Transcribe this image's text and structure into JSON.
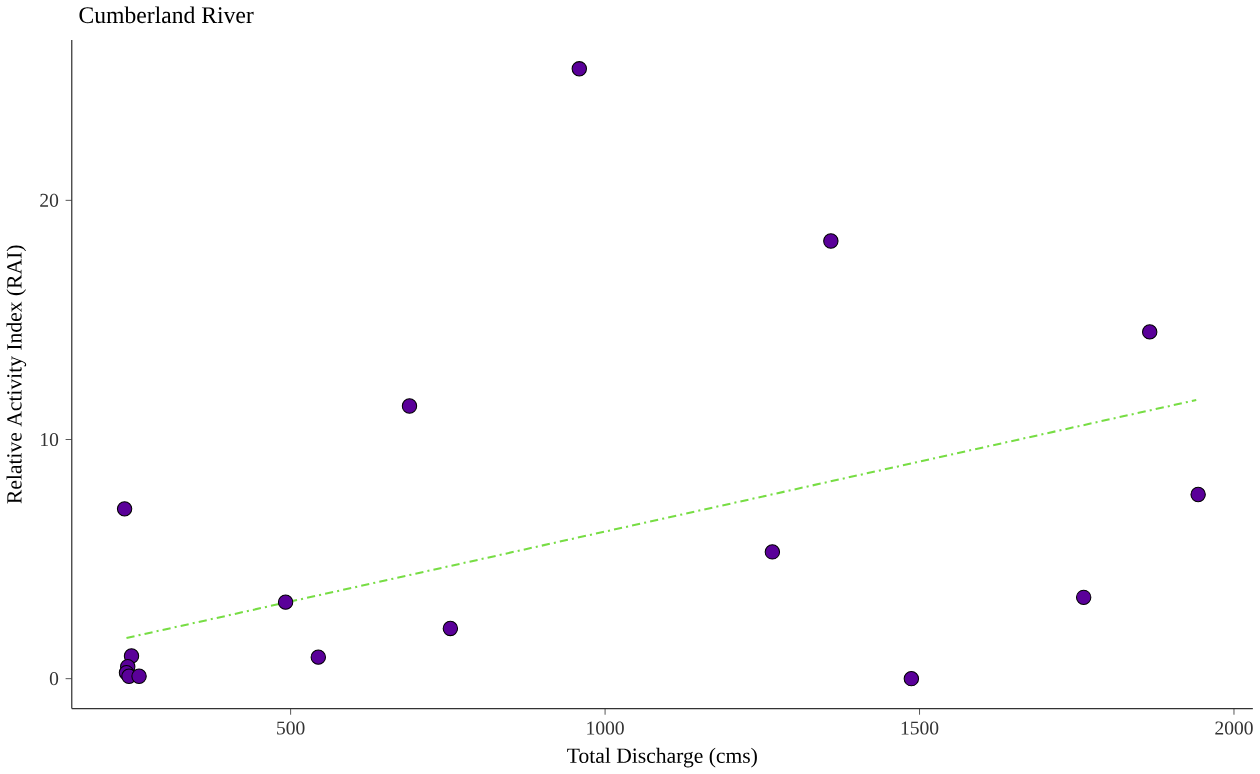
{
  "chart_data": {
    "type": "scatter",
    "title": "Cumberland River",
    "xlabel": "Total Discharge (cms)",
    "ylabel": "Relative Activity Index (RAI)",
    "xlim": [
      152,
      2030
    ],
    "ylim": [
      -1.25,
      26.7
    ],
    "xticks": [
      500,
      1000,
      1500,
      2000
    ],
    "yticks": [
      0,
      10,
      20
    ],
    "series": [
      {
        "color": "#5a0099",
        "marker": "circle",
        "x": [
          247,
          241,
          239,
          243,
          259,
          236,
          492,
          544,
          689,
          754,
          959,
          1266,
          1359,
          1487,
          1761,
          1866,
          1943
        ],
        "values": [
          0.95,
          0.5,
          0.25,
          0.1,
          0.1,
          7.1,
          3.2,
          0.9,
          11.4,
          2.1,
          25.5,
          5.3,
          18.3,
          0,
          3.4,
          14.5,
          7.7
        ]
      },
      {
        "type": "line",
        "color": "#77dd44",
        "marker": "none",
        "line_style": "dashed",
        "x": [
          239,
          1940
        ],
        "values": [
          1.7,
          11.65
        ]
      }
    ]
  }
}
